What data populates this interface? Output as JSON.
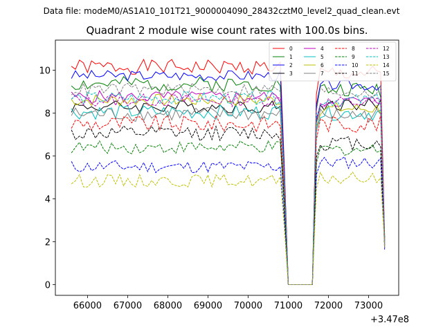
{
  "header": {
    "suptitle": "Data file: modeM0/AS1A10_101T21_9000004090_28432cztM0_level2_quad_clean.evt"
  },
  "chart_data": {
    "type": "line",
    "title": "Quadrant 2 module wise count rates with 100.0s bins.",
    "xlabel": "",
    "ylabel": "",
    "x_offset_label": "+3.47e8",
    "xlim": [
      65200,
      73750
    ],
    "ylim": [
      -0.5,
      11.4
    ],
    "xticks": [
      66000,
      67000,
      68000,
      69000,
      70000,
      71000,
      72000,
      73000
    ],
    "xtick_labels": [
      "66000",
      "67000",
      "68000",
      "69000",
      "70000",
      "71000",
      "72000",
      "73000"
    ],
    "yticks": [
      0,
      2,
      4,
      6,
      8,
      10
    ],
    "ytick_labels": [
      "0",
      "2",
      "4",
      "6",
      "8",
      "10"
    ],
    "x_start": 65600,
    "x_step": 100,
    "x_end": 73400,
    "gap_start": 71000,
    "gap_end": 71600,
    "legend_position": "top-right",
    "series": [
      {
        "name": "0",
        "color": "#ff0000",
        "dash": "solid",
        "base": 10.15,
        "after": 9.85,
        "amp": 0.35,
        "seed": 1
      },
      {
        "name": "1",
        "color": "#008000",
        "dash": "solid",
        "base": 9.35,
        "after": 9.1,
        "amp": 0.35,
        "seed": 2
      },
      {
        "name": "2",
        "color": "#0000ff",
        "dash": "solid",
        "base": 9.75,
        "after": 9.3,
        "amp": 0.25,
        "seed": 3
      },
      {
        "name": "3",
        "color": "#000000",
        "dash": "solid",
        "base": 8.3,
        "after": 8.4,
        "amp": 0.3,
        "seed": 4
      },
      {
        "name": "4",
        "color": "#bf00bf",
        "dash": "solid",
        "base": 8.75,
        "after": 8.55,
        "amp": 0.3,
        "seed": 5
      },
      {
        "name": "5",
        "color": "#00bfbf",
        "dash": "solid",
        "base": 8.05,
        "after": 8.0,
        "amp": 0.35,
        "seed": 6
      },
      {
        "name": "6",
        "color": "#bfbf00",
        "dash": "solid",
        "base": 8.6,
        "after": 8.2,
        "amp": 0.3,
        "seed": 7
      },
      {
        "name": "7",
        "color": "#808080",
        "dash": "solid",
        "base": 7.95,
        "after": 7.9,
        "amp": 0.35,
        "seed": 8
      },
      {
        "name": "8",
        "color": "#ff0000",
        "dash": "dashed",
        "base": 7.5,
        "after": 7.5,
        "amp": 0.4,
        "seed": 9
      },
      {
        "name": "9",
        "color": "#008000",
        "dash": "dashed",
        "base": 6.4,
        "after": 6.3,
        "amp": 0.3,
        "seed": 10
      },
      {
        "name": "10",
        "color": "#0000ff",
        "dash": "dashed",
        "base": 5.5,
        "after": 5.7,
        "amp": 0.3,
        "seed": 11
      },
      {
        "name": "11",
        "color": "#000000",
        "dash": "dashed",
        "base": 7.05,
        "after": 6.6,
        "amp": 0.35,
        "seed": 12
      },
      {
        "name": "12",
        "color": "#bf00bf",
        "dash": "dashed",
        "base": 8.6,
        "after": 8.5,
        "amp": 0.3,
        "seed": 13
      },
      {
        "name": "13",
        "color": "#00bfbf",
        "dash": "dashed",
        "base": 8.7,
        "after": 8.6,
        "amp": 0.3,
        "seed": 14
      },
      {
        "name": "14",
        "color": "#bfbf00",
        "dash": "dashed",
        "base": 4.85,
        "after": 4.95,
        "amp": 0.3,
        "seed": 15
      },
      {
        "name": "15",
        "color": "#808080",
        "dash": "dashed",
        "base": 9.1,
        "after": 9.0,
        "amp": 0.3,
        "seed": 16
      }
    ]
  }
}
